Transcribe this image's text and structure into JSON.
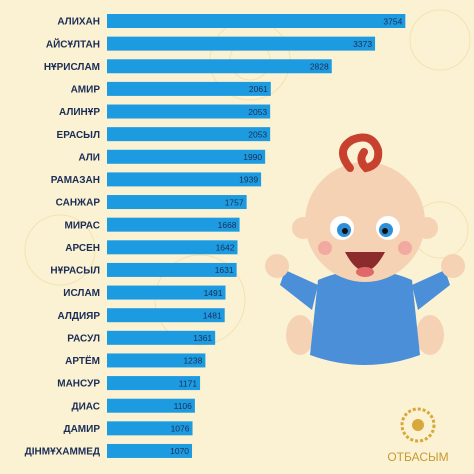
{
  "chart_data": {
    "type": "bar",
    "orientation": "horizontal",
    "categories": [
      "АЛИХАН",
      "АЙСҰЛТАН",
      "НҰРИСЛАМ",
      "АМИР",
      "АЛИНҰР",
      "ЕРАСЫЛ",
      "АЛИ",
      "РАМАЗАН",
      "САНЖАР",
      "МИРАС",
      "АРСЕН",
      "НҰРАСЫЛ",
      "ИСЛАМ",
      "АЛДИЯР",
      "РАСУЛ",
      "АРТЁМ",
      "МАНСУР",
      "ДИАС",
      "ДАМИР",
      "ДІНМҰХАММЕД"
    ],
    "values": [
      3754,
      3373,
      2828,
      2061,
      2053,
      2053,
      1990,
      1939,
      1757,
      1668,
      1642,
      1631,
      1491,
      1481,
      1361,
      1238,
      1171,
      1106,
      1076,
      1070
    ],
    "color": "#1d9be1",
    "xlim": [
      0,
      3800
    ],
    "logo": "ОТБАСЫМ"
  }
}
